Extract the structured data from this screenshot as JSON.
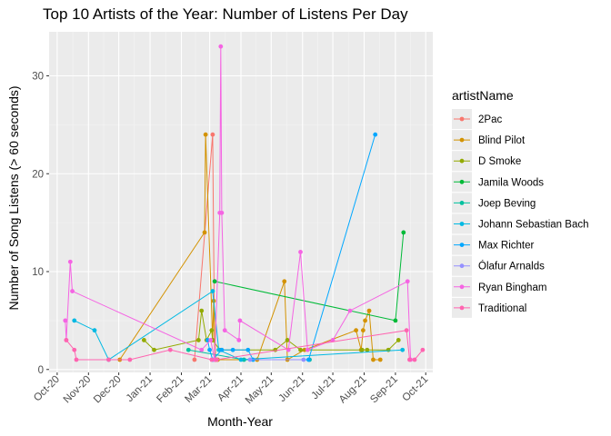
{
  "chart_data": {
    "type": "line",
    "title": "Top 10 Artists of the Year: Number of Listens Per Day",
    "xlabel": "Month-Year",
    "ylabel": "Number of Song Listens (> 60 seconds)",
    "x_ticks": [
      "2020-10-01",
      "2020-11-01",
      "2020-12-01",
      "2021-01-01",
      "2021-02-01",
      "2021-03-01",
      "2021-04-01",
      "2021-05-01",
      "2021-06-01",
      "2021-07-01",
      "2021-08-01",
      "2021-09-01",
      "2021-10-01"
    ],
    "x_tick_labels": [
      "Oct-20",
      "Nov-20",
      "Dec-20",
      "Jan-21",
      "Feb-21",
      "Mar-21",
      "Apr-21",
      "May-21",
      "Jun-21",
      "Jul-21",
      "Aug-21",
      "Sep-21",
      "Oct-21"
    ],
    "xlim": [
      "2020-09-23",
      "2021-10-08"
    ],
    "ylim": [
      -0.3,
      34.5
    ],
    "y_ticks": [
      0,
      10,
      20,
      30
    ],
    "grid": true,
    "legend_title": "artistName",
    "legend_position": "right",
    "series": [
      {
        "name": "2Pac",
        "color": "#F8766D",
        "points": [
          [
            "2021-02-14",
            1
          ],
          [
            "2021-03-04",
            24
          ],
          [
            "2021-03-06",
            1
          ]
        ]
      },
      {
        "name": "Blind Pilot",
        "color": "#D39200",
        "points": [
          [
            "2020-12-02",
            1
          ],
          [
            "2021-02-24",
            14
          ],
          [
            "2021-02-25",
            24
          ],
          [
            "2021-03-04",
            3
          ],
          [
            "2021-03-05",
            7
          ],
          [
            "2021-03-07",
            1
          ],
          [
            "2021-03-09",
            1
          ],
          [
            "2021-04-17",
            1
          ],
          [
            "2021-05-14",
            9
          ],
          [
            "2021-05-17",
            1
          ],
          [
            "2021-06-03",
            2
          ],
          [
            "2021-07-24",
            4
          ],
          [
            "2021-07-29",
            2
          ],
          [
            "2021-07-31",
            4
          ],
          [
            "2021-08-02",
            5
          ],
          [
            "2021-08-06",
            6
          ],
          [
            "2021-08-10",
            1
          ],
          [
            "2021-08-17",
            1
          ]
        ]
      },
      {
        "name": "D Smoke",
        "color": "#93AA00",
        "points": [
          [
            "2020-12-26",
            3
          ],
          [
            "2021-01-05",
            2
          ],
          [
            "2021-02-18",
            3
          ],
          [
            "2021-02-21",
            6
          ],
          [
            "2021-02-26",
            3
          ],
          [
            "2021-03-03",
            4
          ],
          [
            "2021-03-04",
            3
          ],
          [
            "2021-03-11",
            2
          ],
          [
            "2021-05-05",
            2
          ],
          [
            "2021-05-17",
            3
          ],
          [
            "2021-05-30",
            2
          ],
          [
            "2021-07-30",
            2
          ],
          [
            "2021-08-04",
            2
          ],
          [
            "2021-08-25",
            2
          ],
          [
            "2021-09-04",
            3
          ]
        ]
      },
      {
        "name": "Jamila Woods",
        "color": "#00BA38",
        "points": [
          [
            "2021-03-06",
            9
          ],
          [
            "2021-09-01",
            5
          ],
          [
            "2021-09-09",
            14
          ]
        ]
      },
      {
        "name": "Joep Beving",
        "color": "#00C19F",
        "points": [
          [
            "2021-02-08",
            2
          ],
          [
            "2021-04-04",
            1
          ],
          [
            "2021-06-08",
            1
          ]
        ]
      },
      {
        "name": "Johann Sebastian Bach",
        "color": "#00B9E3",
        "points": [
          [
            "2020-10-18",
            5
          ],
          [
            "2020-11-07",
            4
          ],
          [
            "2020-11-21",
            1
          ],
          [
            "2021-03-04",
            8
          ],
          [
            "2021-03-10",
            2
          ],
          [
            "2021-04-01",
            1
          ],
          [
            "2021-09-08",
            2
          ]
        ]
      },
      {
        "name": "Max Richter",
        "color": "#00A7FF",
        "points": [
          [
            "2021-02-27",
            3
          ],
          [
            "2021-03-01",
            2
          ],
          [
            "2021-03-04",
            1
          ],
          [
            "2021-03-13",
            2
          ],
          [
            "2021-03-24",
            2
          ],
          [
            "2021-04-08",
            2
          ],
          [
            "2021-04-13",
            1
          ],
          [
            "2021-06-07",
            1
          ],
          [
            "2021-08-12",
            24
          ]
        ]
      },
      {
        "name": "Ólafur Arnalds",
        "color": "#9590FF",
        "points": [
          [
            "2021-04-10",
            1
          ],
          [
            "2021-06-02",
            1
          ]
        ]
      },
      {
        "name": "Ryan Bingham",
        "color": "#F564E3",
        "points": [
          [
            "2020-10-09",
            5
          ],
          [
            "2020-10-10",
            3
          ],
          [
            "2020-10-14",
            11
          ],
          [
            "2020-10-16",
            8
          ],
          [
            "2021-02-21",
            2
          ],
          [
            "2021-03-02",
            3
          ],
          [
            "2021-03-06",
            1
          ],
          [
            "2021-03-11",
            16
          ],
          [
            "2021-03-12",
            33
          ],
          [
            "2021-03-13",
            16
          ],
          [
            "2021-03-16",
            4
          ],
          [
            "2021-03-30",
            3
          ],
          [
            "2021-03-31",
            5
          ],
          [
            "2021-05-18",
            2
          ],
          [
            "2021-05-30",
            12
          ],
          [
            "2021-06-06",
            2
          ],
          [
            "2021-07-01",
            3
          ],
          [
            "2021-07-18",
            6
          ],
          [
            "2021-09-13",
            9
          ],
          [
            "2021-09-16",
            1
          ]
        ]
      },
      {
        "name": "Traditional",
        "color": "#FF64B0",
        "points": [
          [
            "2020-10-10",
            3
          ],
          [
            "2020-10-18",
            2
          ],
          [
            "2020-10-20",
            1
          ],
          [
            "2020-11-21",
            1
          ],
          [
            "2020-12-12",
            1
          ],
          [
            "2021-01-21",
            2
          ],
          [
            "2021-03-03",
            1
          ],
          [
            "2021-03-08",
            1
          ],
          [
            "2021-09-12",
            4
          ],
          [
            "2021-09-15",
            1
          ],
          [
            "2021-09-20",
            1
          ],
          [
            "2021-09-28",
            2
          ]
        ]
      }
    ]
  }
}
